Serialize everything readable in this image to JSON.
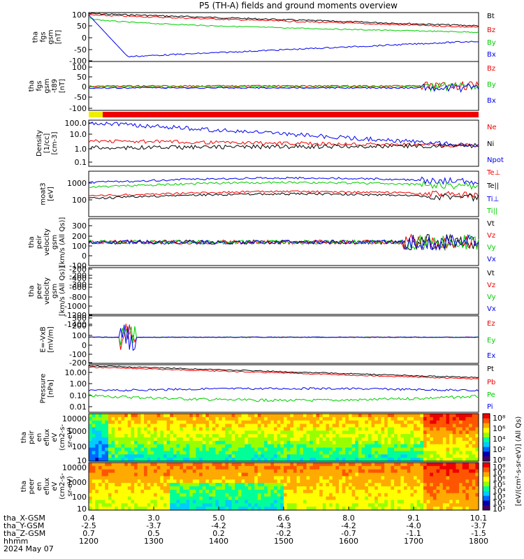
{
  "title": "P5 (TH-A) fields and ground moments overview",
  "date_label": "2024 May 07",
  "colors": {
    "black": "#000000",
    "red": "#ee0000",
    "green": "#00cc00",
    "blue": "#0000ee"
  },
  "chart_data": [
    {
      "type": "line",
      "ylabel": [
        "tha",
        "fgs",
        "gsm",
        "[nT]"
      ],
      "yticks": [
        "100",
        "50",
        "0",
        "-50",
        "-100"
      ],
      "ylim": [
        -100,
        100
      ],
      "series": [
        {
          "name": "Bt",
          "color": "black"
        },
        {
          "name": "Bz",
          "color": "red"
        },
        {
          "name": "By",
          "color": "green"
        },
        {
          "name": "Bx",
          "color": "blue"
        }
      ]
    },
    {
      "type": "line",
      "ylabel": [
        "tha",
        "fgs",
        "gsm",
        "-t89",
        "[nT]"
      ],
      "yticks": [
        "100",
        "50",
        "0",
        "-50",
        "-100"
      ],
      "ylim": [
        -130,
        130
      ],
      "series": [
        {
          "name": "Bz",
          "color": "red"
        },
        {
          "name": "By",
          "color": "green"
        },
        {
          "name": "Bx",
          "color": "blue"
        }
      ]
    },
    {
      "type": "line",
      "log": true,
      "ylabel": [
        "Density",
        "[1/cc]",
        "[cm-3]"
      ],
      "yticks": [
        "100.0",
        "10.0",
        "1.0",
        "0.1"
      ],
      "series": [
        {
          "name": "Ne",
          "color": "red"
        },
        {
          "name": "Ni",
          "color": "black"
        },
        {
          "name": "Npot",
          "color": "blue"
        }
      ]
    },
    {
      "type": "line",
      "log": true,
      "ylabel": [
        "moat3",
        "[eV]"
      ],
      "yticks": [
        "1000",
        "100"
      ],
      "series": [
        {
          "name": "Te⊥",
          "color": "red"
        },
        {
          "name": "Te||",
          "color": "black"
        },
        {
          "name": "Ti⊥",
          "color": "blue"
        },
        {
          "name": "Ti||",
          "color": "green"
        }
      ]
    },
    {
      "type": "line",
      "ylabel": [
        "tha",
        "peir",
        "velocity",
        "gsm",
        "[km/s (All Qs)]"
      ],
      "yticks": [
        "300",
        "200",
        "100",
        "0",
        "-100",
        "-200",
        "-300"
      ],
      "ylim": [
        -300,
        300
      ],
      "series": [
        {
          "name": "Vt",
          "color": "black"
        },
        {
          "name": "Vz",
          "color": "red"
        },
        {
          "name": "Vy",
          "color": "green"
        },
        {
          "name": "Vx",
          "color": "blue"
        }
      ]
    },
    {
      "type": "line",
      "ylabel": [
        "tha",
        "peer",
        "velocity",
        "gsm",
        "[km/s (All Qs)]"
      ],
      "yticks": [
        "-200",
        "-400",
        "-600",
        "-800",
        "-1000",
        "-1200",
        "-1400"
      ],
      "ylim": [
        -1400,
        0
      ],
      "series": [
        {
          "name": "Vt",
          "color": "black"
        },
        {
          "name": "Vz",
          "color": "red"
        },
        {
          "name": "Vy",
          "color": "green"
        },
        {
          "name": "Vx",
          "color": "blue"
        }
      ]
    },
    {
      "type": "line",
      "ylabel": [
        "E=-VxB",
        "[mV/m]"
      ],
      "yticks": [
        "300",
        "200",
        "100",
        "0",
        "-100",
        "-200",
        "-300"
      ],
      "ylim": [
        -300,
        300
      ],
      "series": [
        {
          "name": "Ez",
          "color": "red"
        },
        {
          "name": "Ey",
          "color": "green"
        },
        {
          "name": "Ex",
          "color": "blue"
        }
      ]
    },
    {
      "type": "line",
      "log": true,
      "ylabel": [
        "Pressure",
        "[nPa]"
      ],
      "yticks": [
        "10.00",
        "1.00",
        "0.10",
        "0.01"
      ],
      "series": [
        {
          "name": "Pt",
          "color": "black"
        },
        {
          "name": "Pb",
          "color": "red"
        },
        {
          "name": "Pe",
          "color": "green"
        },
        {
          "name": "Pi",
          "color": "blue"
        }
      ]
    },
    {
      "type": "heatmap",
      "ylabel": [
        "tha",
        "peir",
        "en",
        "eflux",
        "eV",
        "(cm2-s-",
        "sr-eV)"
      ],
      "yticks": [
        "10000",
        "1000",
        "100",
        "10"
      ]
    },
    {
      "type": "heatmap",
      "ylabel": [
        "tha",
        "peer",
        "en",
        "eflux",
        "eV",
        "(cm2-s-",
        "sr-eV)"
      ],
      "yticks": [
        "10000",
        "1000",
        "100",
        "10"
      ]
    }
  ],
  "colorbar": {
    "label": "[eV/(cm²-s-sr-eV)] (All Qs)",
    "top_ticks": [
      "10⁸",
      "10⁶",
      "10⁴",
      "10²",
      "10⁰"
    ],
    "bottom_ticks": [
      "10⁸",
      "10⁷",
      "10⁶",
      "10⁵",
      "10⁴",
      "10³",
      "10²",
      "10¹"
    ]
  },
  "x_axis": {
    "row_labels": [
      "tha_X-GSM",
      "tha_Y-GSM",
      "tha_Z-GSM",
      "hhmm",
      "2024 May 07"
    ],
    "ticks": [
      {
        "x_gsm": "0.4",
        "y_gsm": "-2.5",
        "z_gsm": "0.7",
        "hhmm": "1200"
      },
      {
        "x_gsm": "3.0",
        "y_gsm": "-3.7",
        "z_gsm": "0.5",
        "hhmm": "1300"
      },
      {
        "x_gsm": "5.0",
        "y_gsm": "-4.2",
        "z_gsm": "0.2",
        "hhmm": "1400"
      },
      {
        "x_gsm": "6.6",
        "y_gsm": "-4.3",
        "z_gsm": "-0.2",
        "hhmm": "1500"
      },
      {
        "x_gsm": "8.0",
        "y_gsm": "-4.2",
        "z_gsm": "-0.7",
        "hhmm": "1600"
      },
      {
        "x_gsm": "9.1",
        "y_gsm": "-4.0",
        "z_gsm": "-1.1",
        "hhmm": "1700"
      },
      {
        "x_gsm": "10.1",
        "y_gsm": "-3.7",
        "z_gsm": "-1.5",
        "hhmm": "1800"
      }
    ]
  }
}
